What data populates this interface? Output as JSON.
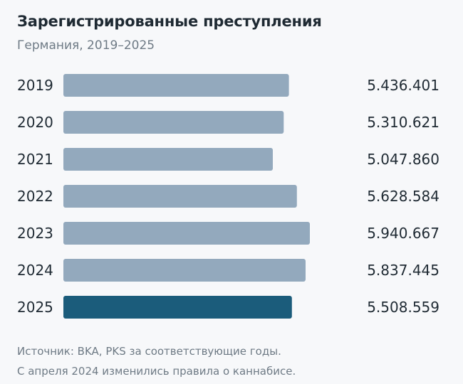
{
  "header": {
    "title": "Зарегистрированные преступления",
    "subtitle": "Германия, 2019–2025"
  },
  "footer": {
    "source": "Источник: BKA, PKS за соответствующие годы.",
    "note": "С апреля 2024 изменились правила о каннабисе."
  },
  "colors": {
    "bar": "#93a9bd",
    "highlight": "#1b5c7b"
  },
  "chart_data": {
    "type": "bar",
    "orientation": "horizontal",
    "categories": [
      "2019",
      "2020",
      "2021",
      "2022",
      "2023",
      "2024",
      "2025"
    ],
    "values": [
      5436401,
      5310621,
      5047860,
      5628584,
      5940667,
      5837445,
      5508559
    ],
    "value_labels": [
      "5.436.401",
      "5.310.621",
      "5.047.860",
      "5.628.584",
      "5.940.667",
      "5.837.445",
      "5.508.559"
    ],
    "highlight_category": "2025",
    "title": "Зарегистрированные преступления",
    "subtitle": "Германия, 2019–2025"
  }
}
